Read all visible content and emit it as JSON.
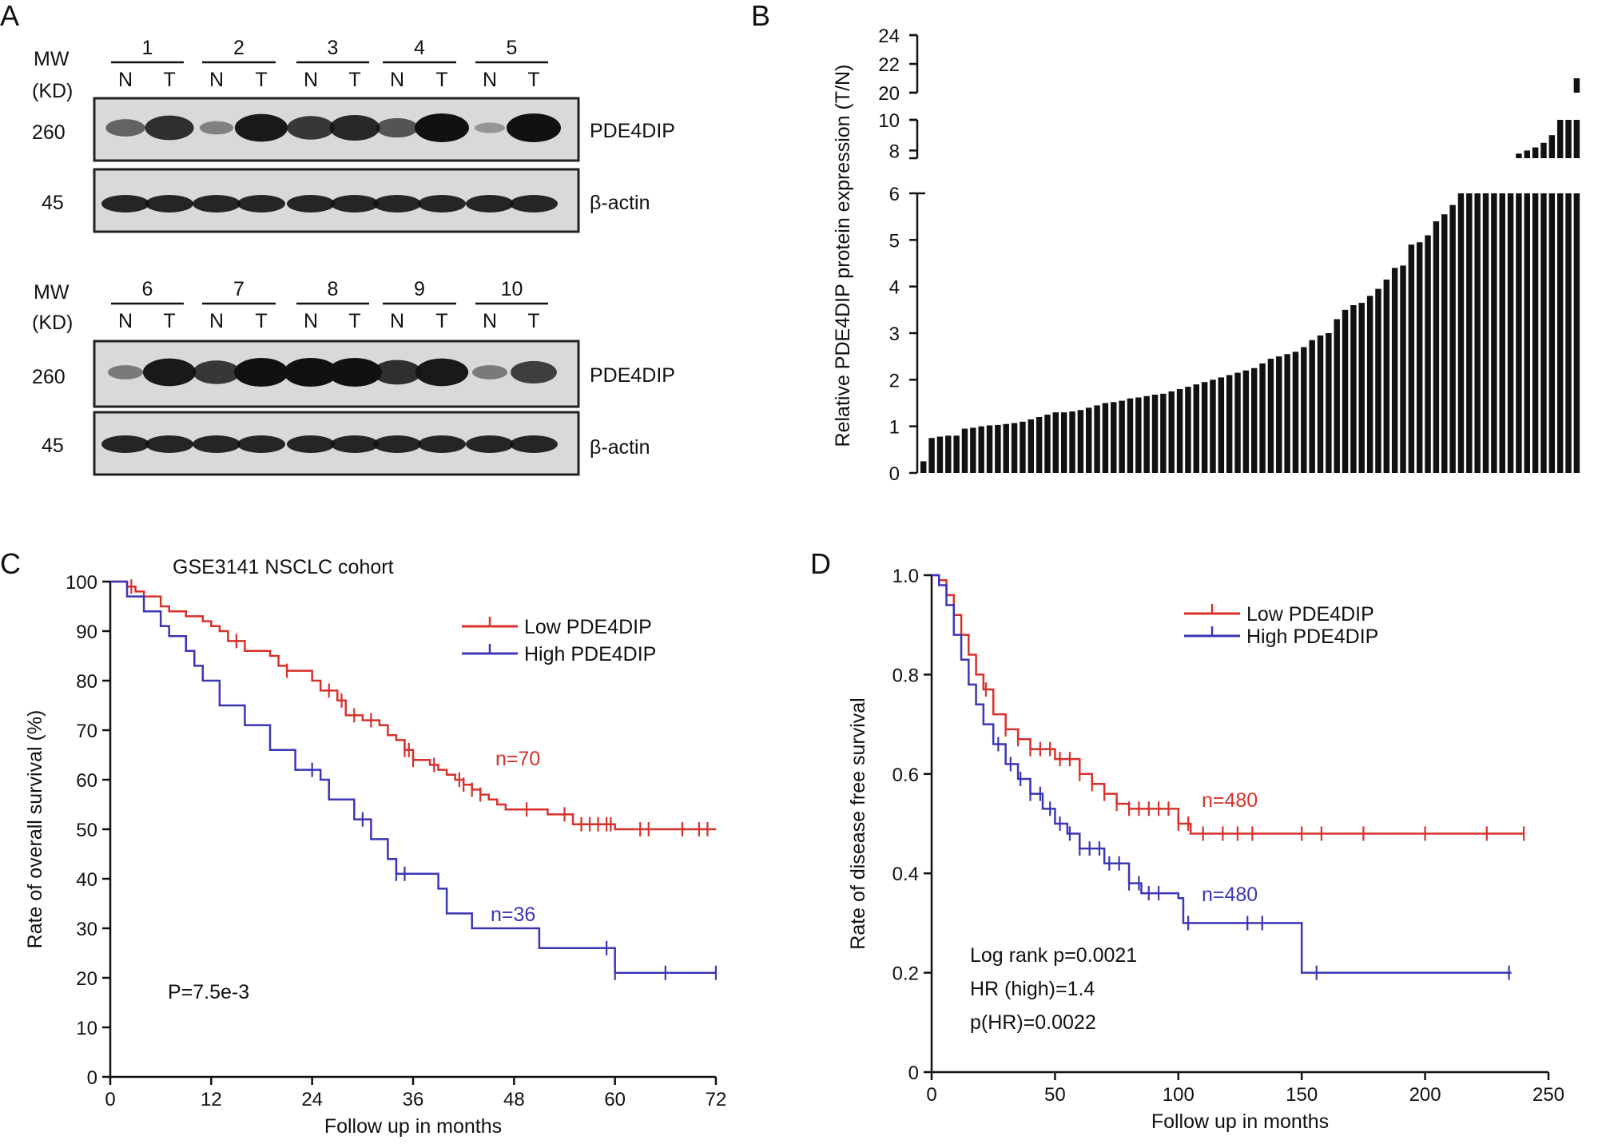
{
  "panels": {
    "A": {
      "letter": "A",
      "mw_label": "MW",
      "kd_label": "(KD)",
      "row1_samples": [
        "1",
        "2",
        "3",
        "4",
        "5"
      ],
      "row2_samples": [
        "6",
        "7",
        "8",
        "9",
        "10"
      ],
      "normal_label": "N",
      "tumor_label": "T",
      "pde4dip_mw": "260",
      "actin_mw": "45",
      "pde4dip_label": "PDE4DIP",
      "actin_label": "β-actin",
      "row1_intensity": {
        "N": [
          0.45,
          0.25,
          0.75,
          0.55,
          0.12
        ],
        "T": [
          0.8,
          0.95,
          0.85,
          1.0,
          1.0
        ]
      },
      "row2_intensity": {
        "N": [
          0.3,
          0.75,
          1.0,
          0.8,
          0.3
        ],
        "T": [
          0.95,
          1.0,
          1.0,
          0.95,
          0.7
        ]
      }
    },
    "B": {
      "letter": "B"
    },
    "C": {
      "letter": "C"
    },
    "D": {
      "letter": "D"
    }
  },
  "chart_data": [
    {
      "id": "B",
      "type": "bar",
      "ylabel": "Relative PDE4DIP protein expression (T/N)",
      "y_ticks_lower": [
        "0",
        "1",
        "2",
        "3",
        "4",
        "5",
        "6"
      ],
      "y_ticks_mid": [
        "8",
        "10"
      ],
      "y_ticks_top": [
        "20",
        "22",
        "24"
      ],
      "segments": [
        [
          0,
          6
        ],
        [
          7.5,
          10
        ],
        [
          20,
          24
        ]
      ],
      "values": [
        0.25,
        0.75,
        0.78,
        0.8,
        0.8,
        0.95,
        0.97,
        1.0,
        1.02,
        1.03,
        1.05,
        1.07,
        1.1,
        1.15,
        1.2,
        1.25,
        1.3,
        1.3,
        1.32,
        1.35,
        1.4,
        1.45,
        1.5,
        1.52,
        1.55,
        1.6,
        1.62,
        1.65,
        1.68,
        1.7,
        1.75,
        1.8,
        1.85,
        1.9,
        1.95,
        2.0,
        2.05,
        2.1,
        2.15,
        2.2,
        2.25,
        2.35,
        2.45,
        2.5,
        2.55,
        2.6,
        2.7,
        2.85,
        2.95,
        3.0,
        3.3,
        3.5,
        3.6,
        3.65,
        3.8,
        3.95,
        4.15,
        4.4,
        4.45,
        4.9,
        4.95,
        5.1,
        5.4,
        5.55,
        5.75,
        6.2,
        6.3,
        6.5,
        6.7,
        6.9,
        7.2,
        7.5,
        7.8,
        8.0,
        8.2,
        8.5,
        9.0,
        10.0,
        10.0,
        21.0
      ]
    },
    {
      "id": "C",
      "type": "line",
      "title": "GSE3141 NSCLC  cohort",
      "xlabel": "Follow up in months",
      "ylabel": "Rate of overall survival (%)",
      "xlim": [
        0,
        72
      ],
      "ylim": [
        0,
        100
      ],
      "x_ticks": [
        0,
        12,
        24,
        36,
        48,
        60,
        72
      ],
      "y_ticks": [
        0,
        10,
        20,
        30,
        40,
        50,
        60,
        70,
        80,
        90,
        100
      ],
      "annotation": "P=7.5e-3",
      "series": [
        {
          "name": "Low PDE4DIP",
          "label": "n=70",
          "color": "#d8302a",
          "x": [
            0,
            2,
            3,
            4,
            6,
            7,
            9,
            11,
            12,
            13,
            14,
            16,
            19,
            20,
            21,
            24,
            25,
            27,
            28,
            30,
            32,
            33,
            34,
            35,
            36,
            38,
            39,
            40,
            41,
            42,
            43,
            44,
            45,
            46,
            47,
            48,
            52,
            55,
            60,
            66,
            72
          ],
          "y": [
            100,
            99,
            98,
            97,
            95,
            94,
            93,
            92,
            91,
            90,
            88,
            86,
            85,
            83,
            82,
            80,
            78,
            76,
            73,
            72,
            71,
            69,
            68,
            66,
            64,
            63,
            62,
            61,
            60,
            59,
            58,
            57,
            56,
            55,
            54,
            54,
            53,
            51,
            50,
            50,
            50
          ],
          "censor_x": [
            2.5,
            15,
            21,
            26,
            27.5,
            29,
            31,
            35,
            35.5,
            36,
            38.5,
            41.5,
            42,
            43,
            44,
            49.5,
            54,
            56,
            57,
            58,
            59,
            59.5,
            63,
            64,
            68,
            70,
            71
          ]
        },
        {
          "name": "High PDE4DIP",
          "label": "n=36",
          "color": "#3a36b5",
          "x": [
            0,
            2,
            4,
            6,
            7,
            9,
            10,
            11,
            13,
            16,
            19,
            22,
            25,
            26,
            29,
            31,
            33,
            34,
            39,
            40,
            43,
            51,
            60,
            66,
            72
          ],
          "y": [
            100,
            97,
            94,
            91,
            89,
            86,
            83,
            80,
            75,
            71,
            66,
            62,
            60,
            56,
            52,
            48,
            44,
            41,
            38,
            33,
            30,
            26,
            21,
            21,
            21
          ],
          "censor_x": [
            24,
            30,
            34,
            35,
            59,
            60,
            66,
            72
          ]
        }
      ]
    },
    {
      "id": "D",
      "type": "line",
      "xlabel": "Follow up in months",
      "ylabel": "Rate of disease free survival",
      "xlim": [
        0,
        250
      ],
      "ylim": [
        0,
        1.0
      ],
      "x_ticks": [
        0,
        50,
        100,
        150,
        200,
        250
      ],
      "y_ticks": [
        0,
        0.2,
        0.4,
        0.6,
        0.8,
        1.0
      ],
      "y_tick_labels": [
        "0",
        "0.2",
        "0.4",
        "0.6",
        "0.8",
        "1.0"
      ],
      "annotations": [
        "Log rank p=0.0021",
        "HR  (high)=1.4",
        "p(HR)=0.0022"
      ],
      "series": [
        {
          "name": "Low PDE4DIP",
          "label": "n=480",
          "color": "#d8302a",
          "x": [
            0,
            3,
            6,
            9,
            12,
            15,
            18,
            21,
            25,
            30,
            35,
            40,
            50,
            60,
            65,
            70,
            75,
            80,
            90,
            100,
            105,
            120,
            150,
            200,
            240
          ],
          "y": [
            1.0,
            0.99,
            0.96,
            0.92,
            0.88,
            0.84,
            0.8,
            0.77,
            0.72,
            0.69,
            0.67,
            0.65,
            0.63,
            0.6,
            0.58,
            0.56,
            0.54,
            0.53,
            0.53,
            0.5,
            0.48,
            0.48,
            0.48,
            0.48,
            0.48
          ],
          "censor_x": [
            22,
            30,
            35,
            40,
            44,
            48,
            52,
            56,
            60,
            65,
            70,
            75,
            80,
            84,
            88,
            92,
            96,
            100,
            104,
            110,
            118,
            124,
            130,
            150,
            158,
            175,
            200,
            225,
            240
          ]
        },
        {
          "name": "High PDE4DIP",
          "label": "n=480",
          "color": "#3a36b5",
          "x": [
            0,
            3,
            6,
            9,
            12,
            15,
            18,
            21,
            25,
            30,
            35,
            40,
            45,
            50,
            55,
            60,
            70,
            80,
            85,
            90,
            100,
            102,
            120,
            140,
            150,
            155,
            200,
            235
          ],
          "y": [
            1.0,
            0.98,
            0.94,
            0.88,
            0.83,
            0.78,
            0.74,
            0.7,
            0.66,
            0.62,
            0.59,
            0.56,
            0.53,
            0.5,
            0.48,
            0.45,
            0.42,
            0.38,
            0.36,
            0.36,
            0.35,
            0.3,
            0.3,
            0.3,
            0.2,
            0.2,
            0.2,
            0.2
          ],
          "censor_x": [
            27,
            32,
            36,
            40,
            44,
            48,
            52,
            56,
            60,
            64,
            68,
            72,
            76,
            80,
            84,
            88,
            92,
            104,
            128,
            134,
            156,
            234
          ]
        }
      ]
    }
  ]
}
